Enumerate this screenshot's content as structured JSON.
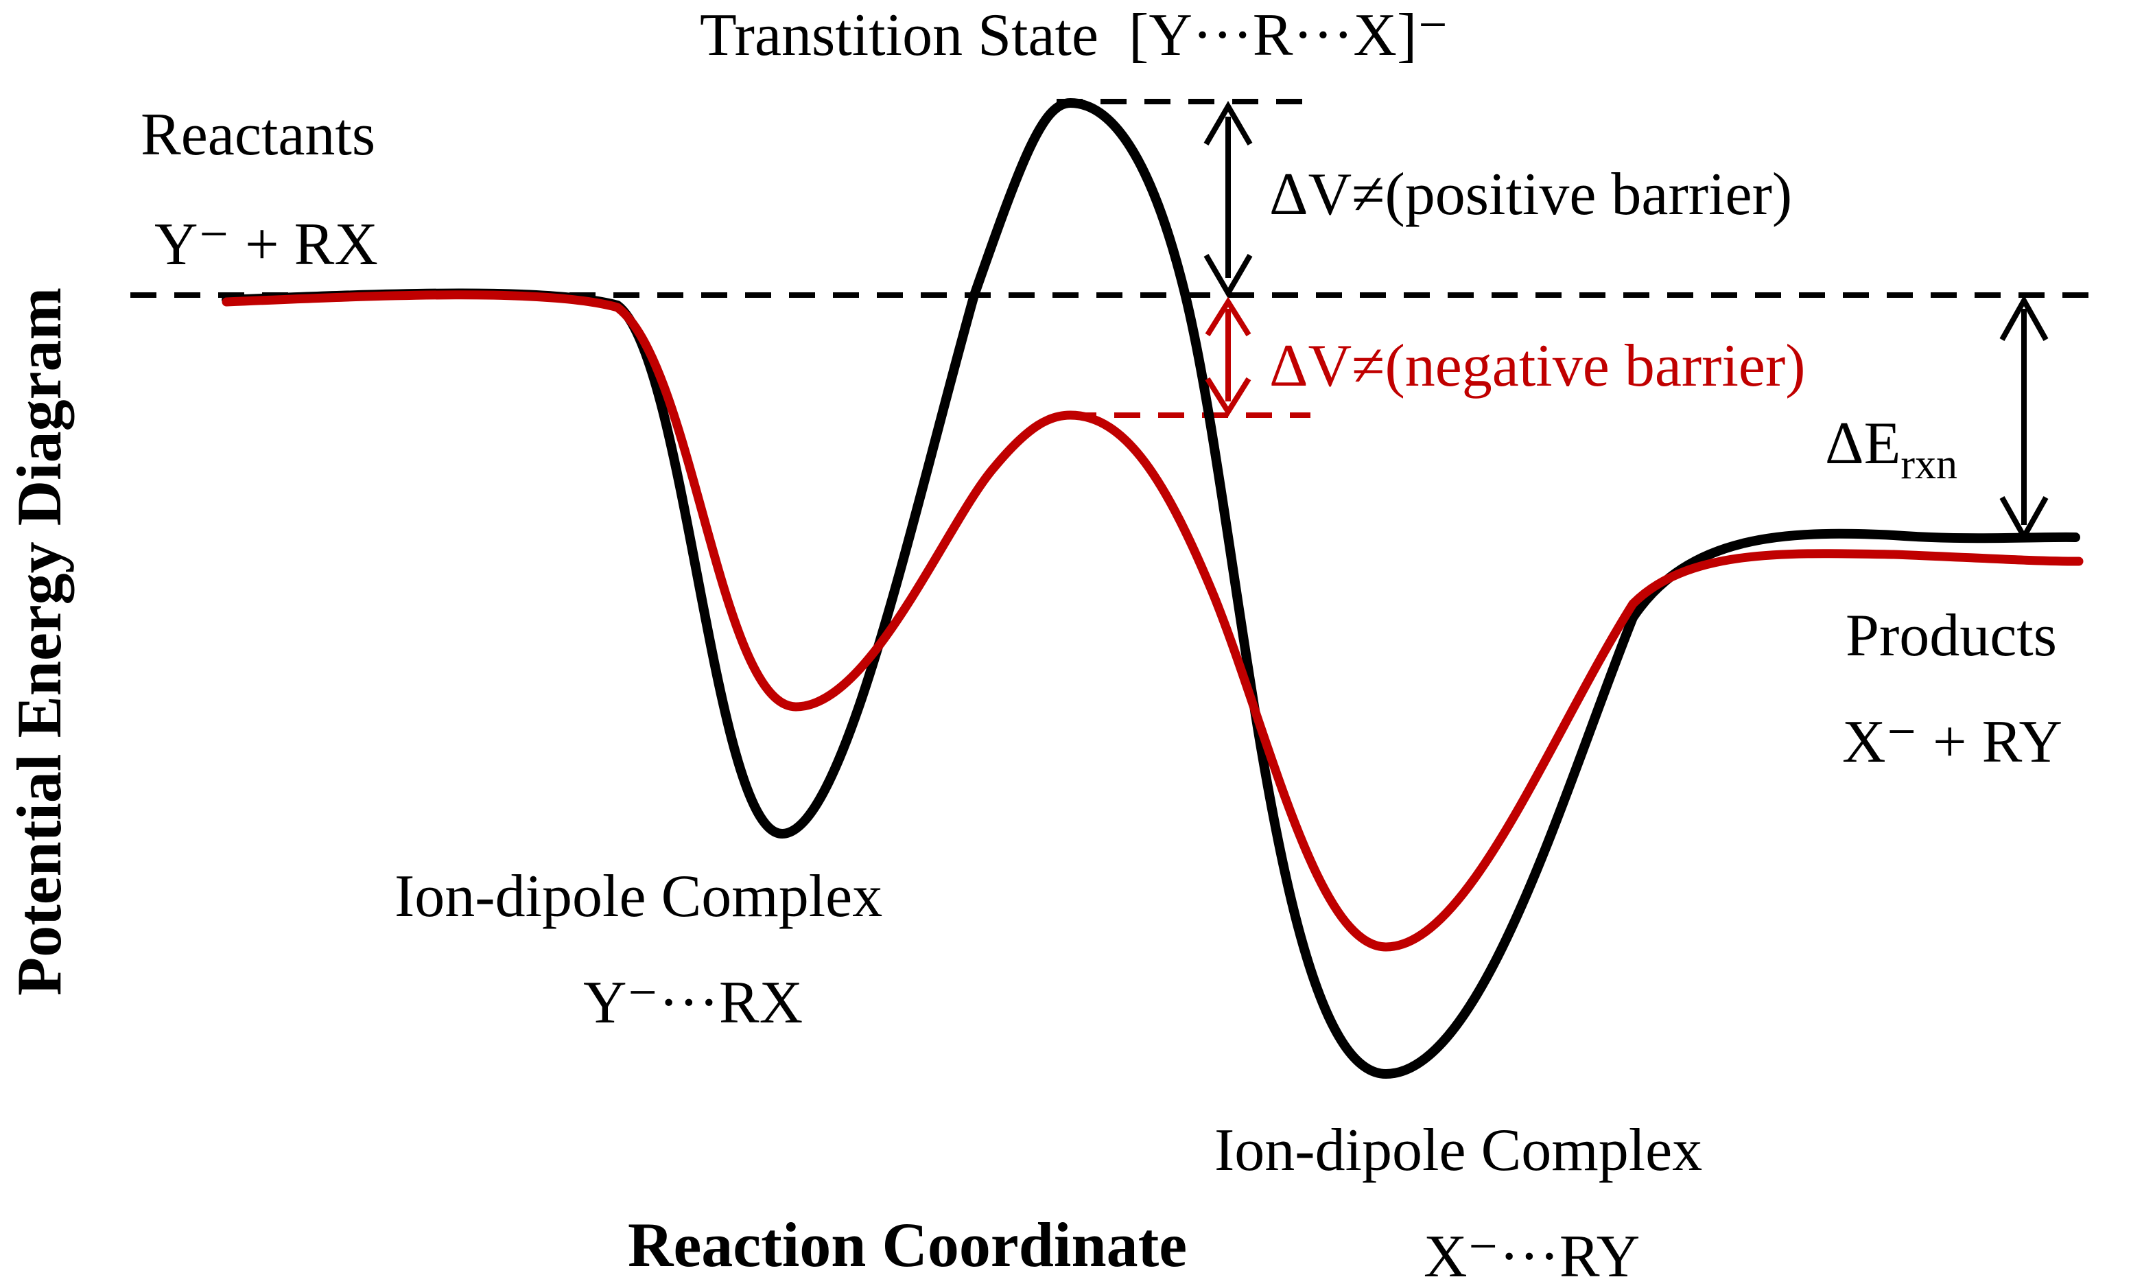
{
  "diagram": {
    "y_axis_title": "Potential Energy Diagram",
    "x_axis_title": "Reaction Coordinate",
    "labels": {
      "transition_state": "Transtition State  [Y···R···X]⁻",
      "reactants": "Reactants",
      "reactants_formula": "Y⁻ + RX",
      "positive_barrier": "ΔV≠(positive barrier)",
      "negative_barrier": "ΔV≠(negative barrier)",
      "delta_e": "ΔE",
      "delta_e_sub": "rxn",
      "products": "Products",
      "products_formula": "X⁻ + RY",
      "complex1": "Ion-dipole Complex",
      "complex1_formula": "Y⁻···RX",
      "complex2": "Ion-dipole Complex",
      "complex2_formula": "X⁻···RY"
    },
    "curves": [
      {
        "name": "positive barrier",
        "color": "#000000"
      },
      {
        "name": "negative barrier",
        "color": "#c00000"
      }
    ]
  }
}
